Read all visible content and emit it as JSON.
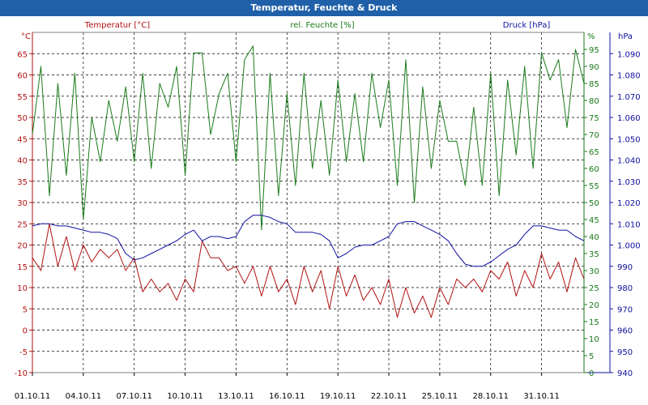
{
  "window": {
    "title": "Temperatur, Feuchte & Druck"
  },
  "chart_data": {
    "type": "line",
    "title": "Temperatur, Feuchte & Druck",
    "x_tick_labels": [
      "01.10.11",
      "04.10.11",
      "07.10.11",
      "10.10.11",
      "13.10.11",
      "16.10.11",
      "19.10.11",
      "22.10.11",
      "25.10.11",
      "28.10.11",
      "31.10.11"
    ],
    "xlim_days": [
      0,
      32.5
    ],
    "grid": true,
    "axes": {
      "temperature": {
        "unit": "°C",
        "ylim": [
          -10,
          70
        ],
        "ticks": [
          -10,
          -5,
          0,
          5,
          10,
          15,
          20,
          25,
          30,
          35,
          40,
          45,
          50,
          55,
          60,
          65
        ],
        "color": "#b01010"
      },
      "humidity": {
        "unit": "%",
        "ylim": [
          0,
          100
        ],
        "ticks": [
          0,
          5,
          10,
          15,
          20,
          25,
          30,
          35,
          40,
          45,
          50,
          55,
          60,
          65,
          70,
          75,
          80,
          85,
          90,
          95
        ],
        "color": "#1a7a1a"
      },
      "pressure": {
        "unit": "hPa",
        "ylim": [
          940,
          1100
        ],
        "ticks": [
          940,
          950,
          960,
          970,
          980,
          990,
          1000,
          1010,
          1020,
          1030,
          1040,
          1050,
          1060,
          1070,
          1080,
          1090
        ],
        "color": "#1010a0"
      }
    },
    "series": [
      {
        "name": "Temperatur [°C]",
        "axis": "temperature",
        "color": "#b01010",
        "x": [
          0,
          0.5,
          1,
          1.5,
          2,
          2.5,
          3,
          3.5,
          4,
          4.5,
          5,
          5.5,
          6,
          6.5,
          7,
          7.5,
          8,
          8.5,
          9,
          9.5,
          10,
          10.5,
          11,
          11.5,
          12,
          12.5,
          13,
          13.5,
          14,
          14.5,
          15,
          15.5,
          16,
          16.5,
          17,
          17.5,
          18,
          18.5,
          19,
          19.5,
          20,
          20.5,
          21,
          21.5,
          22,
          22.5,
          23,
          23.5,
          24,
          24.5,
          25,
          25.5,
          26,
          26.5,
          27,
          27.5,
          28,
          28.5,
          29,
          29.5,
          30,
          30.5,
          31,
          31.5,
          32,
          32.5
        ],
        "y": [
          17,
          14,
          25,
          15,
          22,
          14,
          20,
          16,
          19,
          17,
          19,
          14,
          17,
          9,
          12,
          9,
          11,
          7,
          12,
          9,
          21,
          17,
          17,
          14,
          15,
          11,
          15,
          8,
          15,
          9,
          12,
          6,
          15,
          9,
          14,
          5,
          15,
          8,
          13,
          7,
          10,
          6,
          12,
          3,
          10,
          4,
          8,
          3,
          10,
          6,
          12,
          10,
          12,
          9,
          14,
          12,
          16,
          8,
          14,
          10,
          18,
          12,
          16,
          9,
          17,
          12
        ]
      },
      {
        "name": "rel. Feuchte [%]",
        "axis": "humidity",
        "color": "#1a7a1a",
        "x": [
          0,
          0.5,
          1,
          1.5,
          2,
          2.5,
          3,
          3.5,
          4,
          4.5,
          5,
          5.5,
          6,
          6.5,
          7,
          7.5,
          8,
          8.5,
          9,
          9.5,
          10,
          10.5,
          11,
          11.5,
          12,
          12.5,
          13,
          13.5,
          14,
          14.5,
          15,
          15.5,
          16,
          16.5,
          17,
          17.5,
          18,
          18.5,
          19,
          19.5,
          20,
          20.5,
          21,
          21.5,
          22,
          22.5,
          23,
          23.5,
          24,
          24.5,
          25,
          25.5,
          26,
          26.5,
          27,
          27.5,
          28,
          28.5,
          29,
          29.5,
          30,
          30.5,
          31,
          31.5,
          32,
          32.5
        ],
        "y": [
          70,
          90,
          52,
          85,
          58,
          88,
          45,
          75,
          62,
          80,
          68,
          84,
          62,
          88,
          60,
          85,
          78,
          90,
          58,
          94,
          94,
          70,
          82,
          88,
          62,
          92,
          96,
          42,
          88,
          52,
          82,
          55,
          88,
          60,
          80,
          58,
          86,
          62,
          82,
          62,
          88,
          72,
          86,
          55,
          92,
          50,
          84,
          60,
          80,
          68,
          68,
          55,
          78,
          55,
          88,
          52,
          86,
          64,
          90,
          60,
          94,
          86,
          92,
          72,
          95,
          85
        ]
      },
      {
        "name": "Druck [hPa]",
        "axis": "pressure",
        "color": "#1010a0",
        "x": [
          0,
          0.5,
          1,
          1.5,
          2,
          2.5,
          3,
          3.5,
          4,
          4.5,
          5,
          5.5,
          6,
          6.5,
          7,
          7.5,
          8,
          8.5,
          9,
          9.5,
          10,
          10.5,
          11,
          11.5,
          12,
          12.5,
          13,
          13.5,
          14,
          14.5,
          15,
          15.5,
          16,
          16.5,
          17,
          17.5,
          18,
          18.5,
          19,
          19.5,
          20,
          20.5,
          21,
          21.5,
          22,
          22.5,
          23,
          23.5,
          24,
          24.5,
          25,
          25.5,
          26,
          26.5,
          27,
          27.5,
          28,
          28.5,
          29,
          29.5,
          30,
          30.5,
          31,
          31.5,
          32,
          32.5
        ],
        "y": [
          1009,
          1010,
          1010,
          1009,
          1009,
          1008,
          1007,
          1006,
          1006,
          1005,
          1003,
          996,
          993,
          994,
          996,
          998,
          1000,
          1002,
          1005,
          1007,
          1002,
          1004,
          1004,
          1003,
          1004,
          1011,
          1014,
          1014,
          1013,
          1011,
          1010,
          1006,
          1006,
          1006,
          1005,
          1002,
          994,
          996,
          999,
          1000,
          1000,
          1002,
          1004,
          1010,
          1011,
          1011,
          1009,
          1007,
          1005,
          1002,
          996,
          991,
          990,
          990,
          992,
          995,
          998,
          1000,
          1005,
          1009,
          1009,
          1008,
          1007,
          1007,
          1004,
          1002
        ]
      }
    ]
  },
  "labels": {
    "temp_unit": "°C",
    "hum_unit": "%",
    "pres_unit": "hPa",
    "temp_header": "Temperatur [°C]",
    "hum_header": "rel. Feuchte [%]",
    "pres_header": "Druck [hPa]"
  }
}
